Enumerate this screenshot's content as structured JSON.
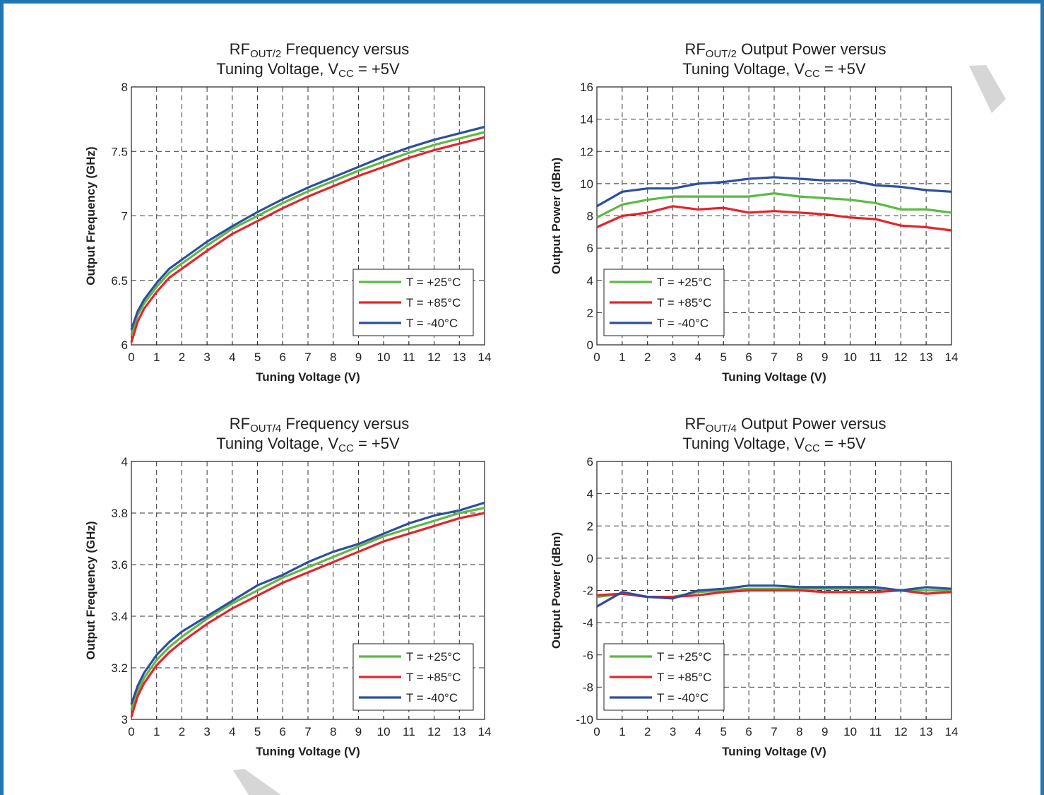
{
  "colors": {
    "t25": "#5cb946",
    "t85": "#e3242b",
    "tm40": "#2e4f9e",
    "border": "#1f77b4"
  },
  "chart_data": [
    {
      "type": "line",
      "title_main": "RF",
      "title_sub": "OUT/2",
      "title_rest": " Frequency versus",
      "title_line2_main": "Tuning Voltage, V",
      "title_line2_sub": "CC",
      "title_line2_rest": " = +5V",
      "xlabel": "Tuning Voltage (V)",
      "ylabel": "Output Frequency (GHz)",
      "xlim": [
        0,
        14
      ],
      "ylim": [
        6,
        8
      ],
      "xticks": [
        "0",
        "1",
        "2",
        "3",
        "4",
        "5",
        "6",
        "7",
        "8",
        "9",
        "10",
        "11",
        "12",
        "13",
        "14"
      ],
      "yticks": [
        "6",
        "6.5",
        "7",
        "7.5",
        "8"
      ],
      "grid": true,
      "legend_position": "lower-right",
      "x": [
        0,
        0.25,
        0.5,
        1,
        1.5,
        2,
        3,
        4,
        5,
        6,
        7,
        8,
        9,
        10,
        11,
        12,
        13,
        14
      ],
      "series": [
        {
          "name": "T = +25°C",
          "color": "#5cb946",
          "values": [
            6.08,
            6.23,
            6.32,
            6.45,
            6.56,
            6.63,
            6.77,
            6.9,
            7.0,
            7.1,
            7.19,
            7.27,
            7.35,
            7.42,
            7.49,
            7.55,
            7.6,
            7.65
          ]
        },
        {
          "name": "T = +85°C",
          "color": "#e3242b",
          "values": [
            6.02,
            6.18,
            6.28,
            6.41,
            6.52,
            6.59,
            6.73,
            6.86,
            6.96,
            7.06,
            7.15,
            7.23,
            7.31,
            7.38,
            7.45,
            7.51,
            7.56,
            7.61
          ]
        },
        {
          "name": "T = -40°C",
          "color": "#2e4f9e",
          "values": [
            6.12,
            6.26,
            6.35,
            6.48,
            6.59,
            6.66,
            6.8,
            6.92,
            7.03,
            7.13,
            7.22,
            7.3,
            7.38,
            7.46,
            7.53,
            7.59,
            7.64,
            7.69
          ]
        }
      ]
    },
    {
      "type": "line",
      "title_main": "RF",
      "title_sub": "OUT/2",
      "title_rest": " Output Power versus",
      "title_line2_main": "Tuning Voltage, V",
      "title_line2_sub": "CC",
      "title_line2_rest": " = +5V",
      "xlabel": "Tuning Voltage (V)",
      "ylabel": "Output Power (dBm)",
      "xlim": [
        0,
        14
      ],
      "ylim": [
        0,
        16
      ],
      "xticks": [
        "0",
        "1",
        "2",
        "3",
        "4",
        "5",
        "6",
        "7",
        "8",
        "9",
        "10",
        "11",
        "12",
        "13",
        "14"
      ],
      "yticks": [
        "0",
        "2",
        "4",
        "6",
        "8",
        "10",
        "12",
        "14",
        "16"
      ],
      "grid": true,
      "legend_position": "lower-left",
      "x": [
        0,
        1,
        2,
        3,
        4,
        5,
        6,
        7,
        8,
        9,
        10,
        11,
        12,
        13,
        14
      ],
      "series": [
        {
          "name": "T = +25°C",
          "color": "#5cb946",
          "values": [
            7.9,
            8.7,
            9.0,
            9.2,
            9.2,
            9.2,
            9.2,
            9.4,
            9.2,
            9.1,
            9.0,
            8.8,
            8.4,
            8.4,
            8.2
          ]
        },
        {
          "name": "T = +85°C",
          "color": "#e3242b",
          "values": [
            7.3,
            8.0,
            8.2,
            8.6,
            8.4,
            8.5,
            8.2,
            8.3,
            8.2,
            8.1,
            7.9,
            7.8,
            7.4,
            7.3,
            7.1
          ]
        },
        {
          "name": "T = -40°C",
          "color": "#2e4f9e",
          "values": [
            8.6,
            9.5,
            9.7,
            9.7,
            10.0,
            10.1,
            10.3,
            10.4,
            10.3,
            10.2,
            10.2,
            9.9,
            9.8,
            9.6,
            9.5
          ]
        }
      ]
    },
    {
      "type": "line",
      "title_main": "RF",
      "title_sub": "OUT/4",
      "title_rest": " Frequency versus",
      "title_line2_main": "Tuning Voltage, V",
      "title_line2_sub": "CC",
      "title_line2_rest": " = +5V",
      "xlabel": "Tuning Voltage (V)",
      "ylabel": "Output Frequency (GHz)",
      "xlim": [
        0,
        14
      ],
      "ylim": [
        3,
        4
      ],
      "xticks": [
        "0",
        "1",
        "2",
        "3",
        "4",
        "5",
        "6",
        "7",
        "8",
        "9",
        "10",
        "11",
        "12",
        "13",
        "14"
      ],
      "yticks": [
        "3",
        "3.2",
        "3.4",
        "3.6",
        "3.8",
        "4"
      ],
      "grid": true,
      "legend_position": "lower-right",
      "x": [
        0,
        0.25,
        0.5,
        1,
        1.5,
        2,
        3,
        4,
        5,
        6,
        7,
        8,
        9,
        10,
        11,
        12,
        13,
        14
      ],
      "series": [
        {
          "name": "T = +25°C",
          "color": "#5cb946",
          "values": [
            3.04,
            3.11,
            3.16,
            3.23,
            3.28,
            3.32,
            3.39,
            3.45,
            3.5,
            3.55,
            3.59,
            3.63,
            3.67,
            3.71,
            3.74,
            3.77,
            3.8,
            3.82
          ]
        },
        {
          "name": "T = +85°C",
          "color": "#e3242b",
          "values": [
            3.01,
            3.09,
            3.14,
            3.21,
            3.26,
            3.3,
            3.37,
            3.43,
            3.48,
            3.53,
            3.57,
            3.61,
            3.65,
            3.69,
            3.72,
            3.75,
            3.78,
            3.8
          ]
        },
        {
          "name": "T = -40°C",
          "color": "#2e4f9e",
          "values": [
            3.06,
            3.13,
            3.18,
            3.25,
            3.3,
            3.34,
            3.4,
            3.46,
            3.52,
            3.56,
            3.61,
            3.65,
            3.68,
            3.72,
            3.76,
            3.79,
            3.81,
            3.84
          ]
        }
      ]
    },
    {
      "type": "line",
      "title_main": "RF",
      "title_sub": "OUT/4",
      "title_rest": " Output Power versus",
      "title_line2_main": "Tuning Voltage, V",
      "title_line2_sub": "CC",
      "title_line2_rest": " = +5V",
      "xlabel": "Tuning Voltage (V)",
      "ylabel": "Output Power (dBm)",
      "xlim": [
        0,
        14
      ],
      "ylim": [
        -10,
        6
      ],
      "xticks": [
        "0",
        "1",
        "2",
        "3",
        "4",
        "5",
        "6",
        "7",
        "8",
        "9",
        "10",
        "11",
        "12",
        "13",
        "14"
      ],
      "yticks": [
        "-10",
        "-8",
        "-6",
        "-4",
        "-2",
        "0",
        "2",
        "4",
        "6"
      ],
      "grid": true,
      "legend_position": "lower-left",
      "x": [
        0,
        1,
        2,
        3,
        4,
        5,
        6,
        7,
        8,
        9,
        10,
        11,
        12,
        13,
        14
      ],
      "series": [
        {
          "name": "T = +25°C",
          "color": "#5cb946",
          "values": [
            -2.4,
            -2.2,
            -2.4,
            -2.4,
            -2.1,
            -2.0,
            -1.9,
            -1.9,
            -1.9,
            -1.9,
            -1.9,
            -1.9,
            -2.0,
            -2.0,
            -2.0
          ]
        },
        {
          "name": "T = +85°C",
          "color": "#e3242b",
          "values": [
            -2.3,
            -2.2,
            -2.4,
            -2.4,
            -2.3,
            -2.1,
            -2.0,
            -2.0,
            -2.0,
            -2.1,
            -2.1,
            -2.1,
            -2.0,
            -2.2,
            -2.1
          ]
        },
        {
          "name": "T = -40°C",
          "color": "#2e4f9e",
          "values": [
            -3.0,
            -2.1,
            -2.4,
            -2.5,
            -2.0,
            -1.9,
            -1.7,
            -1.7,
            -1.8,
            -1.8,
            -1.8,
            -1.8,
            -2.0,
            -1.8,
            -1.9
          ]
        }
      ]
    }
  ]
}
